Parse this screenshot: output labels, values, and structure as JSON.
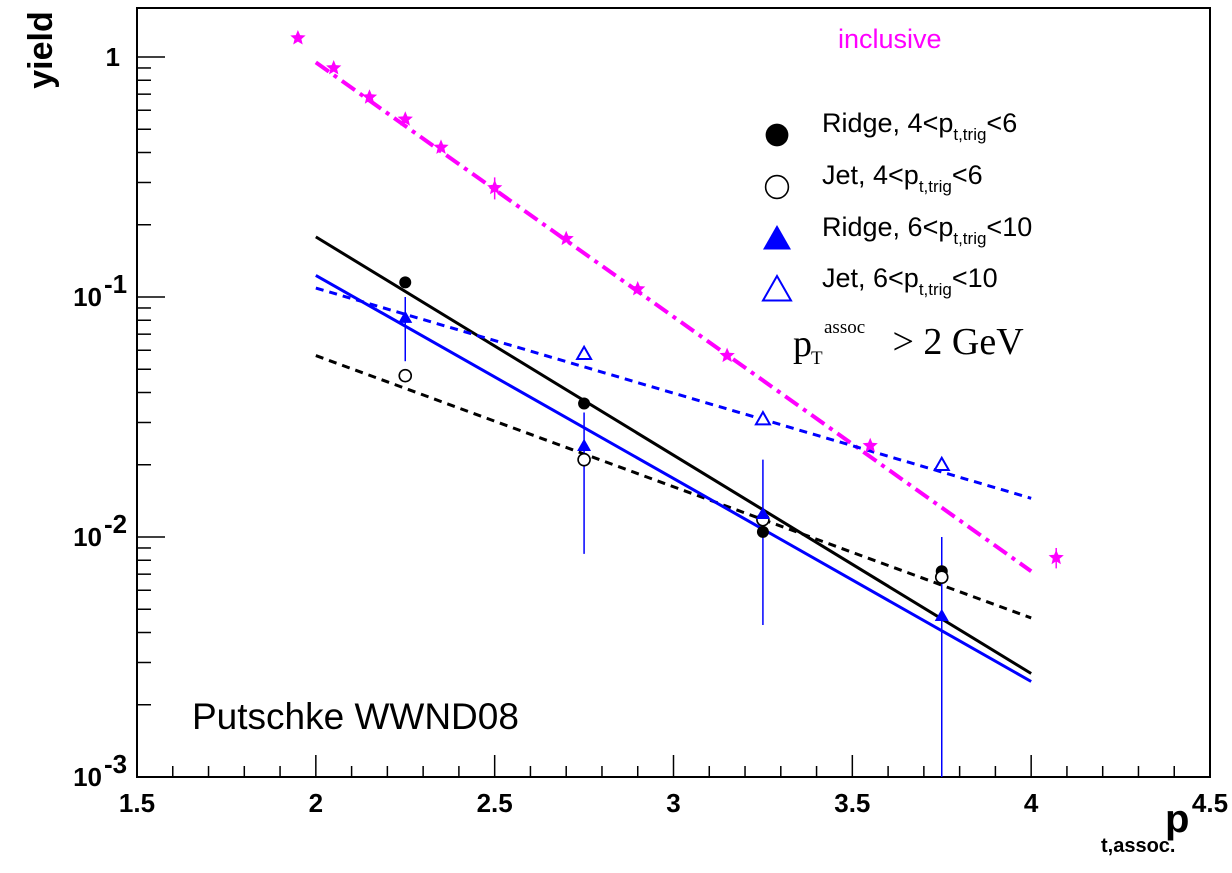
{
  "chart_data": {
    "type": "scatter",
    "xlabel": "p",
    "xlabel_sub": "t,assoc.",
    "ylabel": "yield",
    "xlim": [
      1.5,
      4.5
    ],
    "ylim": [
      0.001,
      1.6
    ],
    "ylog": true,
    "x_ticks": [
      "1.5",
      "2",
      "2.5",
      "3",
      "3.5",
      "4",
      "4.5"
    ],
    "y_ticks": [
      {
        "base": "1",
        "exp": ""
      },
      {
        "base": "10",
        "exp": "-1"
      },
      {
        "base": "10",
        "exp": "-2"
      },
      {
        "base": "10",
        "exp": "-3"
      }
    ],
    "annotations": {
      "inclusive": "inclusive",
      "pt_cut_main": "p",
      "pt_cut_sub": "T",
      "pt_cut_sup": "assoc",
      "pt_cut_rest": " > 2 GeV",
      "credit": "Putschke WWND08"
    },
    "legend": [
      {
        "marker": "filled-circle",
        "pre": "Ridge, 4<p",
        "sub": "t,trig",
        "post": "<6"
      },
      {
        "marker": "open-circle",
        "pre": "Jet, 4<p",
        "sub": "t,trig",
        "post": "<6"
      },
      {
        "marker": "filled-triangle",
        "pre": "Ridge, 6<p",
        "sub": "t,trig",
        "post": "<10"
      },
      {
        "marker": "open-triangle",
        "pre": "Jet, 6<p",
        "sub": "t,trig",
        "post": "<10"
      }
    ],
    "series": [
      {
        "key": "inclusive",
        "color": "#ff00ff",
        "marker": "star",
        "x": [
          1.95,
          2.05,
          2.15,
          2.25,
          2.35,
          2.5,
          2.7,
          2.9,
          3.15,
          3.55,
          4.07
        ],
        "y": [
          1.2,
          0.9,
          0.68,
          0.55,
          0.42,
          0.285,
          0.175,
          0.108,
          0.057,
          0.024,
          0.0082
        ],
        "err": [
          0,
          0,
          0,
          0,
          0,
          0.03,
          0,
          0,
          0,
          0,
          0.0008
        ]
      },
      {
        "key": "ridge_4_6",
        "color": "#000000",
        "marker": "filled-circle",
        "x": [
          2.25,
          2.75,
          3.25,
          3.75
        ],
        "y": [
          0.115,
          0.036,
          0.0105,
          0.0072
        ],
        "err": [
          0,
          0,
          0,
          0
        ]
      },
      {
        "key": "jet_4_6",
        "color": "#000000",
        "marker": "open-circle",
        "x": [
          2.25,
          2.75,
          3.25,
          3.75
        ],
        "y": [
          0.047,
          0.021,
          0.0118,
          0.0068
        ],
        "err": [
          0,
          0,
          0,
          0
        ]
      },
      {
        "key": "ridge_6_10",
        "color": "#0000ff",
        "marker": "filled-triangle",
        "x": [
          2.25,
          2.75,
          3.25,
          3.75
        ],
        "y": [
          0.082,
          0.024,
          0.0125,
          0.0047
        ],
        "err_low": [
          0.028,
          0.0155,
          0.0082,
          0.0047
        ],
        "err_high": [
          0.018,
          0.009,
          0.0085,
          0.0053
        ]
      },
      {
        "key": "jet_6_10",
        "color": "#0000ff",
        "marker": "open-triangle",
        "x": [
          2.75,
          3.25,
          3.75
        ],
        "y": [
          0.058,
          0.031,
          0.02
        ],
        "err": [
          0,
          0,
          0
        ]
      }
    ],
    "fits": [
      {
        "key": "inclusive_fit",
        "color": "#ff00ff",
        "style": "dashdot",
        "x": [
          2.0,
          4.0
        ],
        "y": [
          0.95,
          0.0072
        ]
      },
      {
        "key": "ridge_4_6_fit",
        "color": "#000000",
        "style": "solid",
        "x": [
          2.0,
          4.0
        ],
        "y": [
          0.178,
          0.0027
        ]
      },
      {
        "key": "jet_4_6_fit",
        "color": "#000000",
        "style": "dashed",
        "x": [
          2.0,
          4.0
        ],
        "y": [
          0.057,
          0.0046
        ]
      },
      {
        "key": "ridge_6_10_fit",
        "color": "#0000ff",
        "style": "solid",
        "x": [
          2.0,
          4.0
        ],
        "y": [
          0.123,
          0.0025
        ]
      },
      {
        "key": "jet_6_10_fit",
        "color": "#0000ff",
        "style": "dashed",
        "x": [
          2.0,
          4.0
        ],
        "y": [
          0.109,
          0.0145
        ]
      }
    ]
  }
}
